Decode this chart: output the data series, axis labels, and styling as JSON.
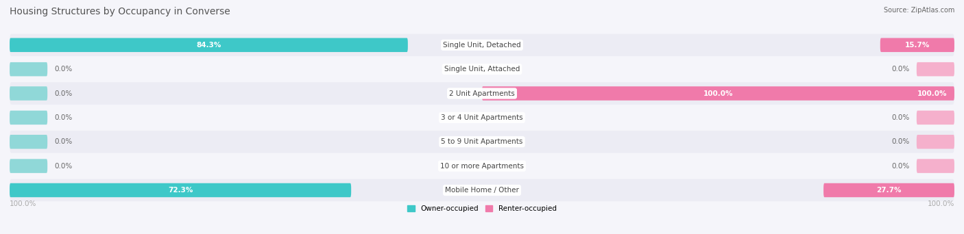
{
  "title": "Housing Structures by Occupancy in Converse",
  "source": "Source: ZipAtlas.com",
  "categories": [
    "Single Unit, Detached",
    "Single Unit, Attached",
    "2 Unit Apartments",
    "3 or 4 Unit Apartments",
    "5 to 9 Unit Apartments",
    "10 or more Apartments",
    "Mobile Home / Other"
  ],
  "owner_values": [
    84.3,
    0.0,
    0.0,
    0.0,
    0.0,
    0.0,
    72.3
  ],
  "renter_values": [
    15.7,
    0.0,
    100.0,
    0.0,
    0.0,
    0.0,
    27.7
  ],
  "owner_color": "#3ec8c8",
  "renter_color": "#f07aaa",
  "owner_stub_color": "#90d8d8",
  "renter_stub_color": "#f5b0cc",
  "title_color": "#555555",
  "label_color": "#666666",
  "value_color_inside": "#ffffff",
  "center_label_color": "#444444",
  "axis_label_color": "#aaaaaa",
  "bg_color": "#f5f5fa",
  "row_bg_even": "#ececf4",
  "row_bg_odd": "#f5f5fa",
  "figsize": [
    14.06,
    3.42
  ],
  "dpi": 100,
  "stub_size": 8.0,
  "bar_height": 0.58,
  "x_min": -100,
  "x_max": 100
}
